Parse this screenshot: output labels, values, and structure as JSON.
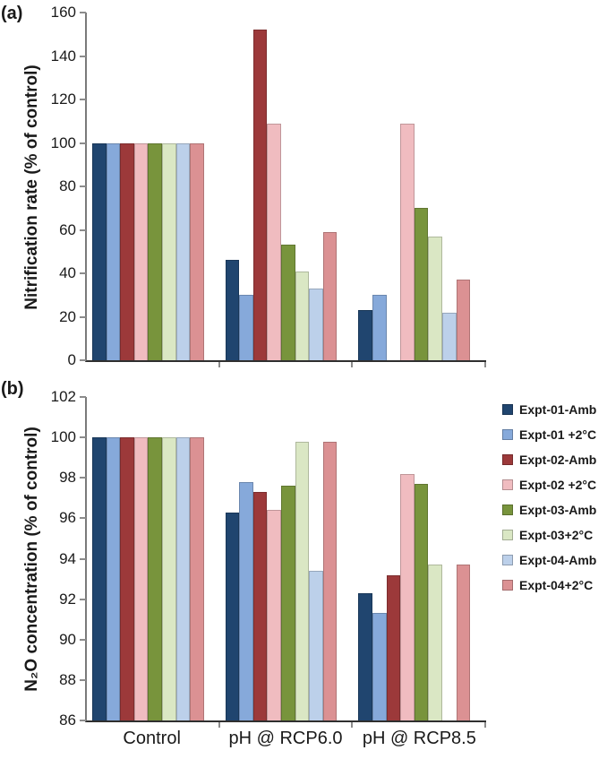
{
  "chart_data": [
    {
      "type": "bar",
      "panel_label": "(a)",
      "ylabel": "Nitrification rate (% of control)",
      "ylim": [
        0,
        160
      ],
      "ytick_step": 20,
      "grid": false,
      "legend_position": "right",
      "categories": [
        "Control",
        "pH @ RCP6.0",
        "pH @ RCP8.5"
      ],
      "series": [
        {
          "name": "Expt-01-Amb",
          "color": "#20456F",
          "values": [
            100,
            46,
            23
          ]
        },
        {
          "name": "Expt-01 +2°C",
          "color": "#86A9DA",
          "values": [
            100,
            30,
            30
          ]
        },
        {
          "name": "Expt-02-Amb",
          "color": "#9C393A",
          "values": [
            100,
            152,
            null
          ]
        },
        {
          "name": "Expt-02 +2°C",
          "color": "#F0BCC0",
          "values": [
            100,
            109,
            109
          ]
        },
        {
          "name": "Expt-03-Amb",
          "color": "#78943C",
          "values": [
            100,
            53,
            70
          ]
        },
        {
          "name": "Expt-03+2°C",
          "color": "#DAE7C4",
          "values": [
            100,
            41,
            57
          ]
        },
        {
          "name": "Expt-04-Amb",
          "color": "#BCD0EA",
          "values": [
            100,
            33,
            22
          ]
        },
        {
          "name": "Expt-04+2°C",
          "color": "#DB9193",
          "values": [
            100,
            59,
            37
          ]
        }
      ]
    },
    {
      "type": "bar",
      "panel_label": "(b)",
      "ylabel": "N₂O concentration (% of control)",
      "ylim": [
        86,
        102
      ],
      "ytick_step": 2,
      "grid": false,
      "categories": [
        "Control",
        "pH @ RCP6.0",
        "pH @ RCP8.5"
      ],
      "series": [
        {
          "name": "Expt-01-Amb",
          "color": "#20456F",
          "values": [
            100,
            96.3,
            92.3
          ]
        },
        {
          "name": "Expt-01 +2°C",
          "color": "#86A9DA",
          "values": [
            100,
            97.8,
            91.3
          ]
        },
        {
          "name": "Expt-02-Amb",
          "color": "#9C393A",
          "values": [
            100,
            97.3,
            93.2
          ]
        },
        {
          "name": "Expt-02 +2°C",
          "color": "#F0BCC0",
          "values": [
            100,
            96.4,
            98.2
          ]
        },
        {
          "name": "Expt-03-Amb",
          "color": "#78943C",
          "values": [
            100,
            97.6,
            97.7
          ]
        },
        {
          "name": "Expt-03+2°C",
          "color": "#DAE7C4",
          "values": [
            100,
            99.8,
            93.7
          ]
        },
        {
          "name": "Expt-04-Amb",
          "color": "#BCD0EA",
          "values": [
            100,
            93.4,
            null
          ]
        },
        {
          "name": "Expt-04+2°C",
          "color": "#DB9193",
          "values": [
            100,
            99.8,
            93.7
          ]
        }
      ]
    }
  ],
  "legend": {
    "items": [
      "Expt-01-Amb",
      "Expt-01 +2°C",
      "Expt-02-Amb",
      "Expt-02 +2°C",
      "Expt-03-Amb",
      "Expt-03+2°C",
      "Expt-04-Amb",
      "Expt-04+2°C"
    ]
  }
}
